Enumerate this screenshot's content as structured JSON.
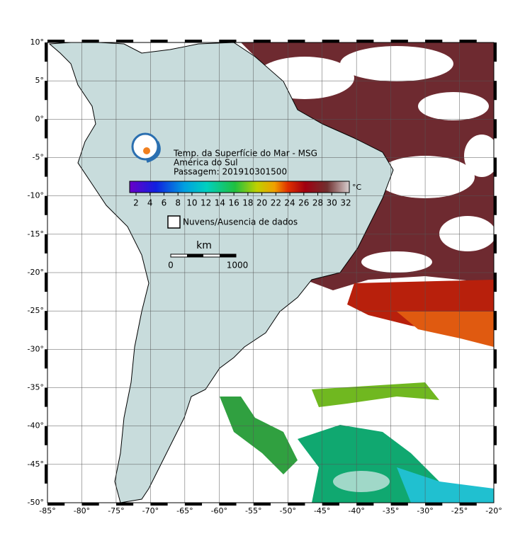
{
  "header": {
    "title": "Temp. da Superfície do Mar - MSG",
    "region": "América do Sul",
    "pass": "Passagem: 201910301500"
  },
  "colorbar": {
    "ticks": [
      "2",
      "4",
      "6",
      "8",
      "10",
      "12",
      "14",
      "16",
      "18",
      "20",
      "22",
      "24",
      "26",
      "28",
      "30",
      "32"
    ],
    "unit": "°C"
  },
  "legend": {
    "clouds": "Nuvens/Ausencia de dados"
  },
  "scale_bar": {
    "unit": "km",
    "start": "0",
    "end": "1000"
  },
  "axes": {
    "lon_labels": [
      "-85°",
      "-80°",
      "-75°",
      "-70°",
      "-65°",
      "-60°",
      "-55°",
      "-50°",
      "-45°",
      "-40°",
      "-35°",
      "-30°",
      "-25°",
      "-20°"
    ],
    "lat_labels": [
      "10°",
      "5°",
      "0°",
      "-5°",
      "-10°",
      "-15°",
      "-20°",
      "-25°",
      "-30°",
      "-35°",
      "-40°",
      "-45°",
      "-50°"
    ]
  }
}
